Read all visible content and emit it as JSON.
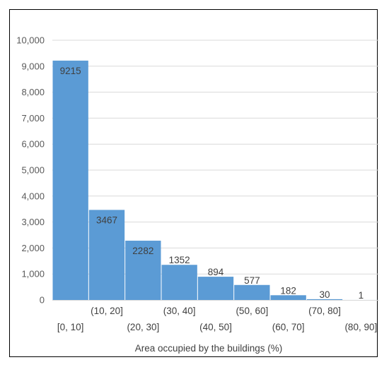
{
  "chart_data": {
    "type": "bar",
    "title": "",
    "xlabel": "Area occupied by the buildings (%)",
    "ylabel": "",
    "categories": [
      "[0, 10]",
      "(10, 20]",
      "(20, 30]",
      "(30, 40]",
      "(40, 50]",
      "(50, 60]",
      "(60, 70]",
      "(70, 80]",
      "(80, 90]"
    ],
    "values": [
      9215,
      3467,
      2282,
      1352,
      894,
      577,
      182,
      30,
      1
    ],
    "data_labels": [
      "9215",
      "3467",
      "2282",
      "1352",
      "894",
      "577",
      "182",
      "30",
      "1"
    ],
    "ylim": [
      0,
      10000
    ],
    "yticks": [
      0,
      1000,
      2000,
      3000,
      4000,
      5000,
      6000,
      7000,
      8000,
      9000,
      10000
    ],
    "ytick_labels": [
      "0",
      "1,000",
      "2,000",
      "3,000",
      "4,000",
      "5,000",
      "6,000",
      "7,000",
      "8,000",
      "9,000",
      "10,000"
    ],
    "grid": true,
    "legend": "none",
    "bar_color": "#5B9BD5",
    "grid_color": "#D9D9D9",
    "text_color": "#404040"
  }
}
